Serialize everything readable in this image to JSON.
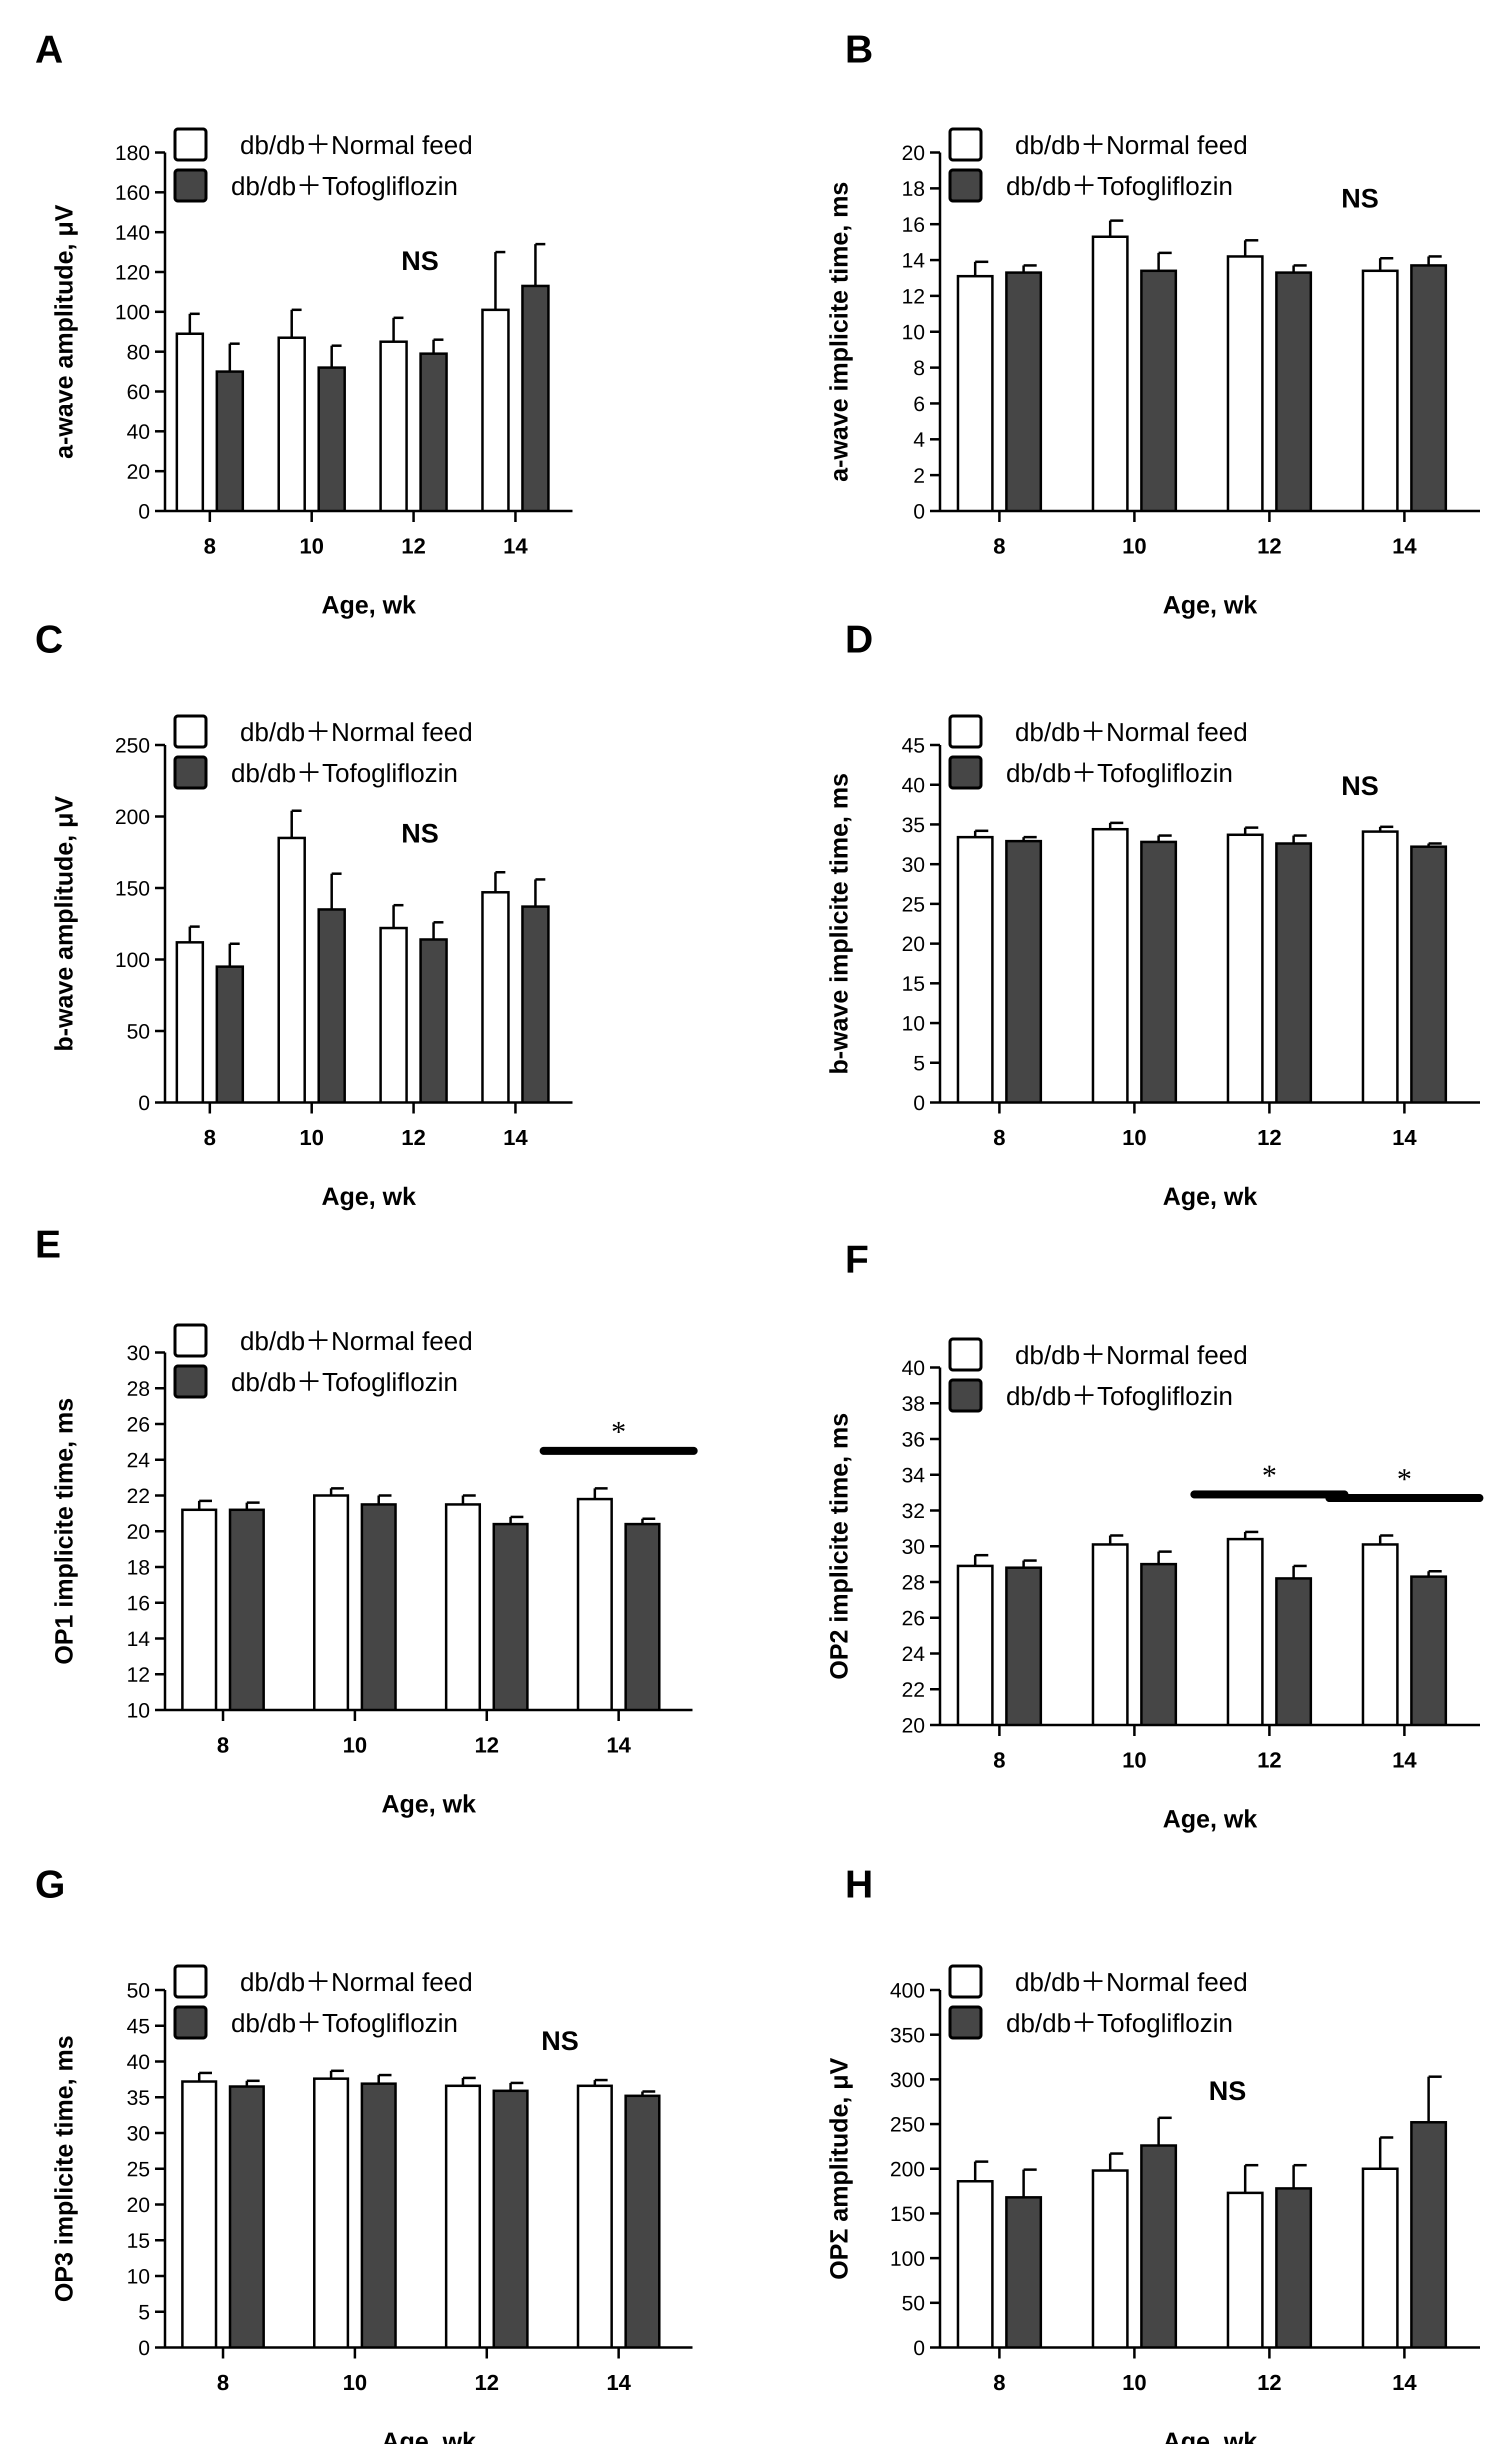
{
  "colors": {
    "normal": "#ffffff",
    "tofo": "#464646",
    "stroke": "#000000"
  },
  "legend": {
    "normal": "db/db＋Normal feed",
    "tofo": "db/db＋Tofogliflozin"
  },
  "chart_data": [
    {
      "panel": "A",
      "type": "bar",
      "xlabel": "Age, wk",
      "ylabel": "a-wave amplitude, μV",
      "categories": [
        "8",
        "10",
        "12",
        "14"
      ],
      "ylim": [
        0,
        180
      ],
      "yticks": [
        0,
        20,
        40,
        60,
        80,
        100,
        120,
        140,
        160,
        180
      ],
      "series": [
        {
          "name": "db/db＋Normal feed",
          "values": [
            89,
            87,
            85,
            101
          ],
          "errors": [
            10,
            14,
            12,
            29
          ]
        },
        {
          "name": "db/db＋Tofogliflozin",
          "values": [
            70,
            72,
            79,
            113
          ],
          "errors": [
            14,
            11,
            7,
            21
          ]
        }
      ],
      "annotations": [
        "NS"
      ]
    },
    {
      "panel": "B",
      "type": "bar",
      "xlabel": "Age, wk",
      "ylabel": "a-wave implicite time, ms",
      "categories": [
        "8",
        "10",
        "12",
        "14"
      ],
      "ylim": [
        0,
        20
      ],
      "yticks": [
        0,
        2,
        4,
        6,
        8,
        10,
        12,
        14,
        16,
        18,
        20
      ],
      "series": [
        {
          "name": "db/db＋Normal feed",
          "values": [
            13.1,
            15.3,
            14.2,
            13.4
          ],
          "errors": [
            0.8,
            0.9,
            0.9,
            0.7
          ]
        },
        {
          "name": "db/db＋Tofogliflozin",
          "values": [
            13.3,
            13.4,
            13.3,
            13.7
          ],
          "errors": [
            0.4,
            1.0,
            0.4,
            0.5
          ]
        }
      ],
      "annotations": [
        "NS"
      ]
    },
    {
      "panel": "C",
      "type": "bar",
      "xlabel": "Age, wk",
      "ylabel": "b-wave amplitude, μV",
      "categories": [
        "8",
        "10",
        "12",
        "14"
      ],
      "ylim": [
        0,
        250
      ],
      "yticks": [
        0,
        50,
        100,
        150,
        200,
        250
      ],
      "series": [
        {
          "name": "db/db＋Normal feed",
          "values": [
            112,
            185,
            122,
            147
          ],
          "errors": [
            11,
            19,
            16,
            14
          ]
        },
        {
          "name": "db/db＋Tofogliflozin",
          "values": [
            95,
            135,
            114,
            137
          ],
          "errors": [
            16,
            25,
            12,
            19
          ]
        }
      ],
      "annotations": [
        "NS"
      ]
    },
    {
      "panel": "D",
      "type": "bar",
      "xlabel": "Age, wk",
      "ylabel": "b-wave implicite time, ms",
      "categories": [
        "8",
        "10",
        "12",
        "14"
      ],
      "ylim": [
        0,
        45
      ],
      "yticks": [
        0,
        5,
        10,
        15,
        20,
        25,
        30,
        35,
        40,
        45
      ],
      "series": [
        {
          "name": "db/db＋Normal feed",
          "values": [
            33.4,
            34.4,
            33.7,
            34.1
          ],
          "errors": [
            0.8,
            0.8,
            0.9,
            0.6
          ]
        },
        {
          "name": "db/db＋Tofogliflozin",
          "values": [
            32.9,
            32.8,
            32.6,
            32.2
          ],
          "errors": [
            0.5,
            0.8,
            1.0,
            0.4
          ]
        }
      ],
      "annotations": [
        "NS"
      ]
    },
    {
      "panel": "E",
      "type": "bar",
      "xlabel": "Age, wk",
      "ylabel": "OP1 implicite time, ms",
      "categories": [
        "8",
        "10",
        "12",
        "14"
      ],
      "ylim": [
        10,
        30
      ],
      "yticks": [
        10,
        12,
        14,
        16,
        18,
        20,
        22,
        24,
        26,
        28,
        30
      ],
      "series": [
        {
          "name": "db/db＋Normal feed",
          "values": [
            21.2,
            22.0,
            21.5,
            21.8
          ],
          "errors": [
            0.5,
            0.4,
            0.5,
            0.6
          ]
        },
        {
          "name": "db/db＋Tofogliflozin",
          "values": [
            21.2,
            21.5,
            20.4,
            20.4
          ],
          "errors": [
            0.4,
            0.5,
            0.4,
            0.3
          ]
        }
      ],
      "annotations": [
        "*"
      ],
      "significance": [
        {
          "group": "14",
          "label": "*"
        }
      ]
    },
    {
      "panel": "F",
      "type": "bar",
      "xlabel": "Age, wk",
      "ylabel": "OP2 implicite time, ms",
      "categories": [
        "8",
        "10",
        "12",
        "14"
      ],
      "ylim": [
        20,
        40
      ],
      "yticks": [
        20,
        22,
        24,
        26,
        28,
        30,
        32,
        34,
        36,
        38,
        40
      ],
      "series": [
        {
          "name": "db/db＋Normal feed",
          "values": [
            28.9,
            30.1,
            30.4,
            30.1
          ],
          "errors": [
            0.6,
            0.5,
            0.4,
            0.5
          ]
        },
        {
          "name": "db/db＋Tofogliflozin",
          "values": [
            28.8,
            29.0,
            28.2,
            28.3
          ],
          "errors": [
            0.4,
            0.7,
            0.7,
            0.3
          ]
        }
      ],
      "annotations": [
        "*",
        "*"
      ],
      "significance": [
        {
          "group": "12",
          "label": "*"
        },
        {
          "group": "14",
          "label": "*"
        }
      ]
    },
    {
      "panel": "G",
      "type": "bar",
      "xlabel": "Age, wk",
      "ylabel": "OP3 implicite time, ms",
      "categories": [
        "8",
        "10",
        "12",
        "14"
      ],
      "ylim": [
        0,
        50
      ],
      "yticks": [
        0,
        5,
        10,
        15,
        20,
        25,
        30,
        35,
        40,
        45,
        50
      ],
      "series": [
        {
          "name": "db/db＋Normal feed",
          "values": [
            37.2,
            37.6,
            36.6,
            36.6
          ],
          "errors": [
            1.2,
            1.1,
            1.1,
            0.8
          ]
        },
        {
          "name": "db/db＋Tofogliflozin",
          "values": [
            36.5,
            36.9,
            35.9,
            35.2
          ],
          "errors": [
            0.8,
            1.2,
            1.1,
            0.6
          ]
        }
      ],
      "annotations": [
        "NS"
      ]
    },
    {
      "panel": "H",
      "type": "bar",
      "xlabel": "Age, wk",
      "ylabel": "OPΣ amplitude, μV",
      "categories": [
        "8",
        "10",
        "12",
        "14"
      ],
      "ylim": [
        0,
        400
      ],
      "yticks": [
        0,
        50,
        100,
        150,
        200,
        250,
        300,
        350,
        400
      ],
      "series": [
        {
          "name": "db/db＋Normal feed",
          "values": [
            186,
            198,
            173,
            200
          ],
          "errors": [
            22,
            19,
            31,
            35
          ]
        },
        {
          "name": "db/db＋Tofogliflozin",
          "values": [
            168,
            226,
            178,
            252
          ],
          "errors": [
            31,
            31,
            26,
            51
          ]
        }
      ],
      "annotations": [
        "NS"
      ]
    }
  ]
}
